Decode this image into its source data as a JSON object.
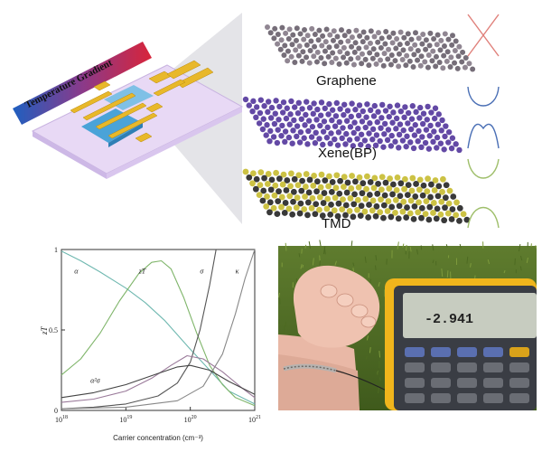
{
  "device": {
    "gradient_label": "Temperature Gradient",
    "hot_color": "#d8243a",
    "cold_color": "#1f5fc0"
  },
  "materials": [
    {
      "name": "Graphene",
      "atom_color": "#6f6672",
      "band_color": "#e0807a",
      "band_shape": "dirac-cone"
    },
    {
      "name": "Xene(BP)",
      "atom_color": "#5b3fa0",
      "band_color": "#4a6fb5",
      "band_shape": "w-valence"
    },
    {
      "name": "TMD",
      "atom_color": "#c9bf3a",
      "band_color": "#9fbf6b",
      "band_shape": "parabolic-gap"
    }
  ],
  "chart_data": {
    "type": "line",
    "x_scale": "log",
    "xlim": [
      18,
      21
    ],
    "ylim": [
      0,
      1
    ],
    "xlabel": "Carrier concentration (cm⁻³)",
    "ylabel": "zT",
    "x_ticks": [
      {
        "base": "10",
        "exp": "18"
      },
      {
        "base": "10",
        "exp": "19"
      },
      {
        "base": "10",
        "exp": "20"
      },
      {
        "base": "10",
        "exp": "21"
      }
    ],
    "y_ticks": [
      "0",
      "0.5",
      "1"
    ],
    "series": [
      {
        "name": "α",
        "color": "#6fb8b0",
        "x": [
          18.0,
          18.3,
          18.6,
          19.0,
          19.3,
          19.6,
          20.0,
          20.3,
          20.6,
          21.0
        ],
        "y": [
          0.99,
          0.93,
          0.86,
          0.76,
          0.67,
          0.56,
          0.38,
          0.25,
          0.12,
          0.04
        ]
      },
      {
        "name": "zT",
        "color": "#7fb56a",
        "x": [
          18.0,
          18.3,
          18.6,
          18.9,
          19.2,
          19.4,
          19.55,
          19.7,
          19.9,
          20.1,
          20.3,
          20.5,
          20.7,
          21.0
        ],
        "y": [
          0.22,
          0.32,
          0.48,
          0.68,
          0.85,
          0.92,
          0.93,
          0.88,
          0.7,
          0.48,
          0.28,
          0.16,
          0.08,
          0.03
        ]
      },
      {
        "name": "σ",
        "color": "#555555",
        "x": [
          18.0,
          18.5,
          19.0,
          19.5,
          19.8,
          20.0,
          20.15,
          20.3,
          20.4
        ],
        "y": [
          0.01,
          0.02,
          0.04,
          0.09,
          0.17,
          0.3,
          0.5,
          0.78,
          1.0
        ]
      },
      {
        "name": "κ",
        "color": "#888888",
        "x": [
          18.0,
          19.0,
          19.8,
          20.2,
          20.5,
          20.7,
          20.85,
          21.0
        ],
        "y": [
          0.01,
          0.02,
          0.06,
          0.15,
          0.35,
          0.6,
          0.82,
          1.0
        ]
      },
      {
        "name": "α²σ",
        "color": "#9a7a9a",
        "x": [
          18.0,
          18.5,
          19.0,
          19.4,
          19.7,
          19.95,
          20.2,
          20.5,
          20.8,
          21.0
        ],
        "y": [
          0.05,
          0.07,
          0.12,
          0.2,
          0.28,
          0.34,
          0.32,
          0.24,
          0.14,
          0.08
        ]
      },
      {
        "name": "",
        "color": "#444444",
        "x": [
          18.0,
          18.5,
          19.0,
          19.5,
          19.8,
          20.0,
          20.3,
          20.6,
          21.0
        ],
        "y": [
          0.08,
          0.11,
          0.16,
          0.23,
          0.27,
          0.28,
          0.25,
          0.18,
          0.1
        ]
      }
    ],
    "annotations": [
      {
        "text": "α",
        "at": [
          18.2,
          0.85
        ]
      },
      {
        "text": "zT",
        "at": [
          19.2,
          0.85
        ]
      },
      {
        "text": "σ",
        "at": [
          20.15,
          0.85
        ]
      },
      {
        "text": "κ",
        "at": [
          20.7,
          0.85
        ]
      },
      {
        "text": "α²σ",
        "at": [
          18.45,
          0.17
        ]
      }
    ]
  },
  "meter": {
    "reading": "-2.941",
    "body_color": "#f0b51c"
  }
}
